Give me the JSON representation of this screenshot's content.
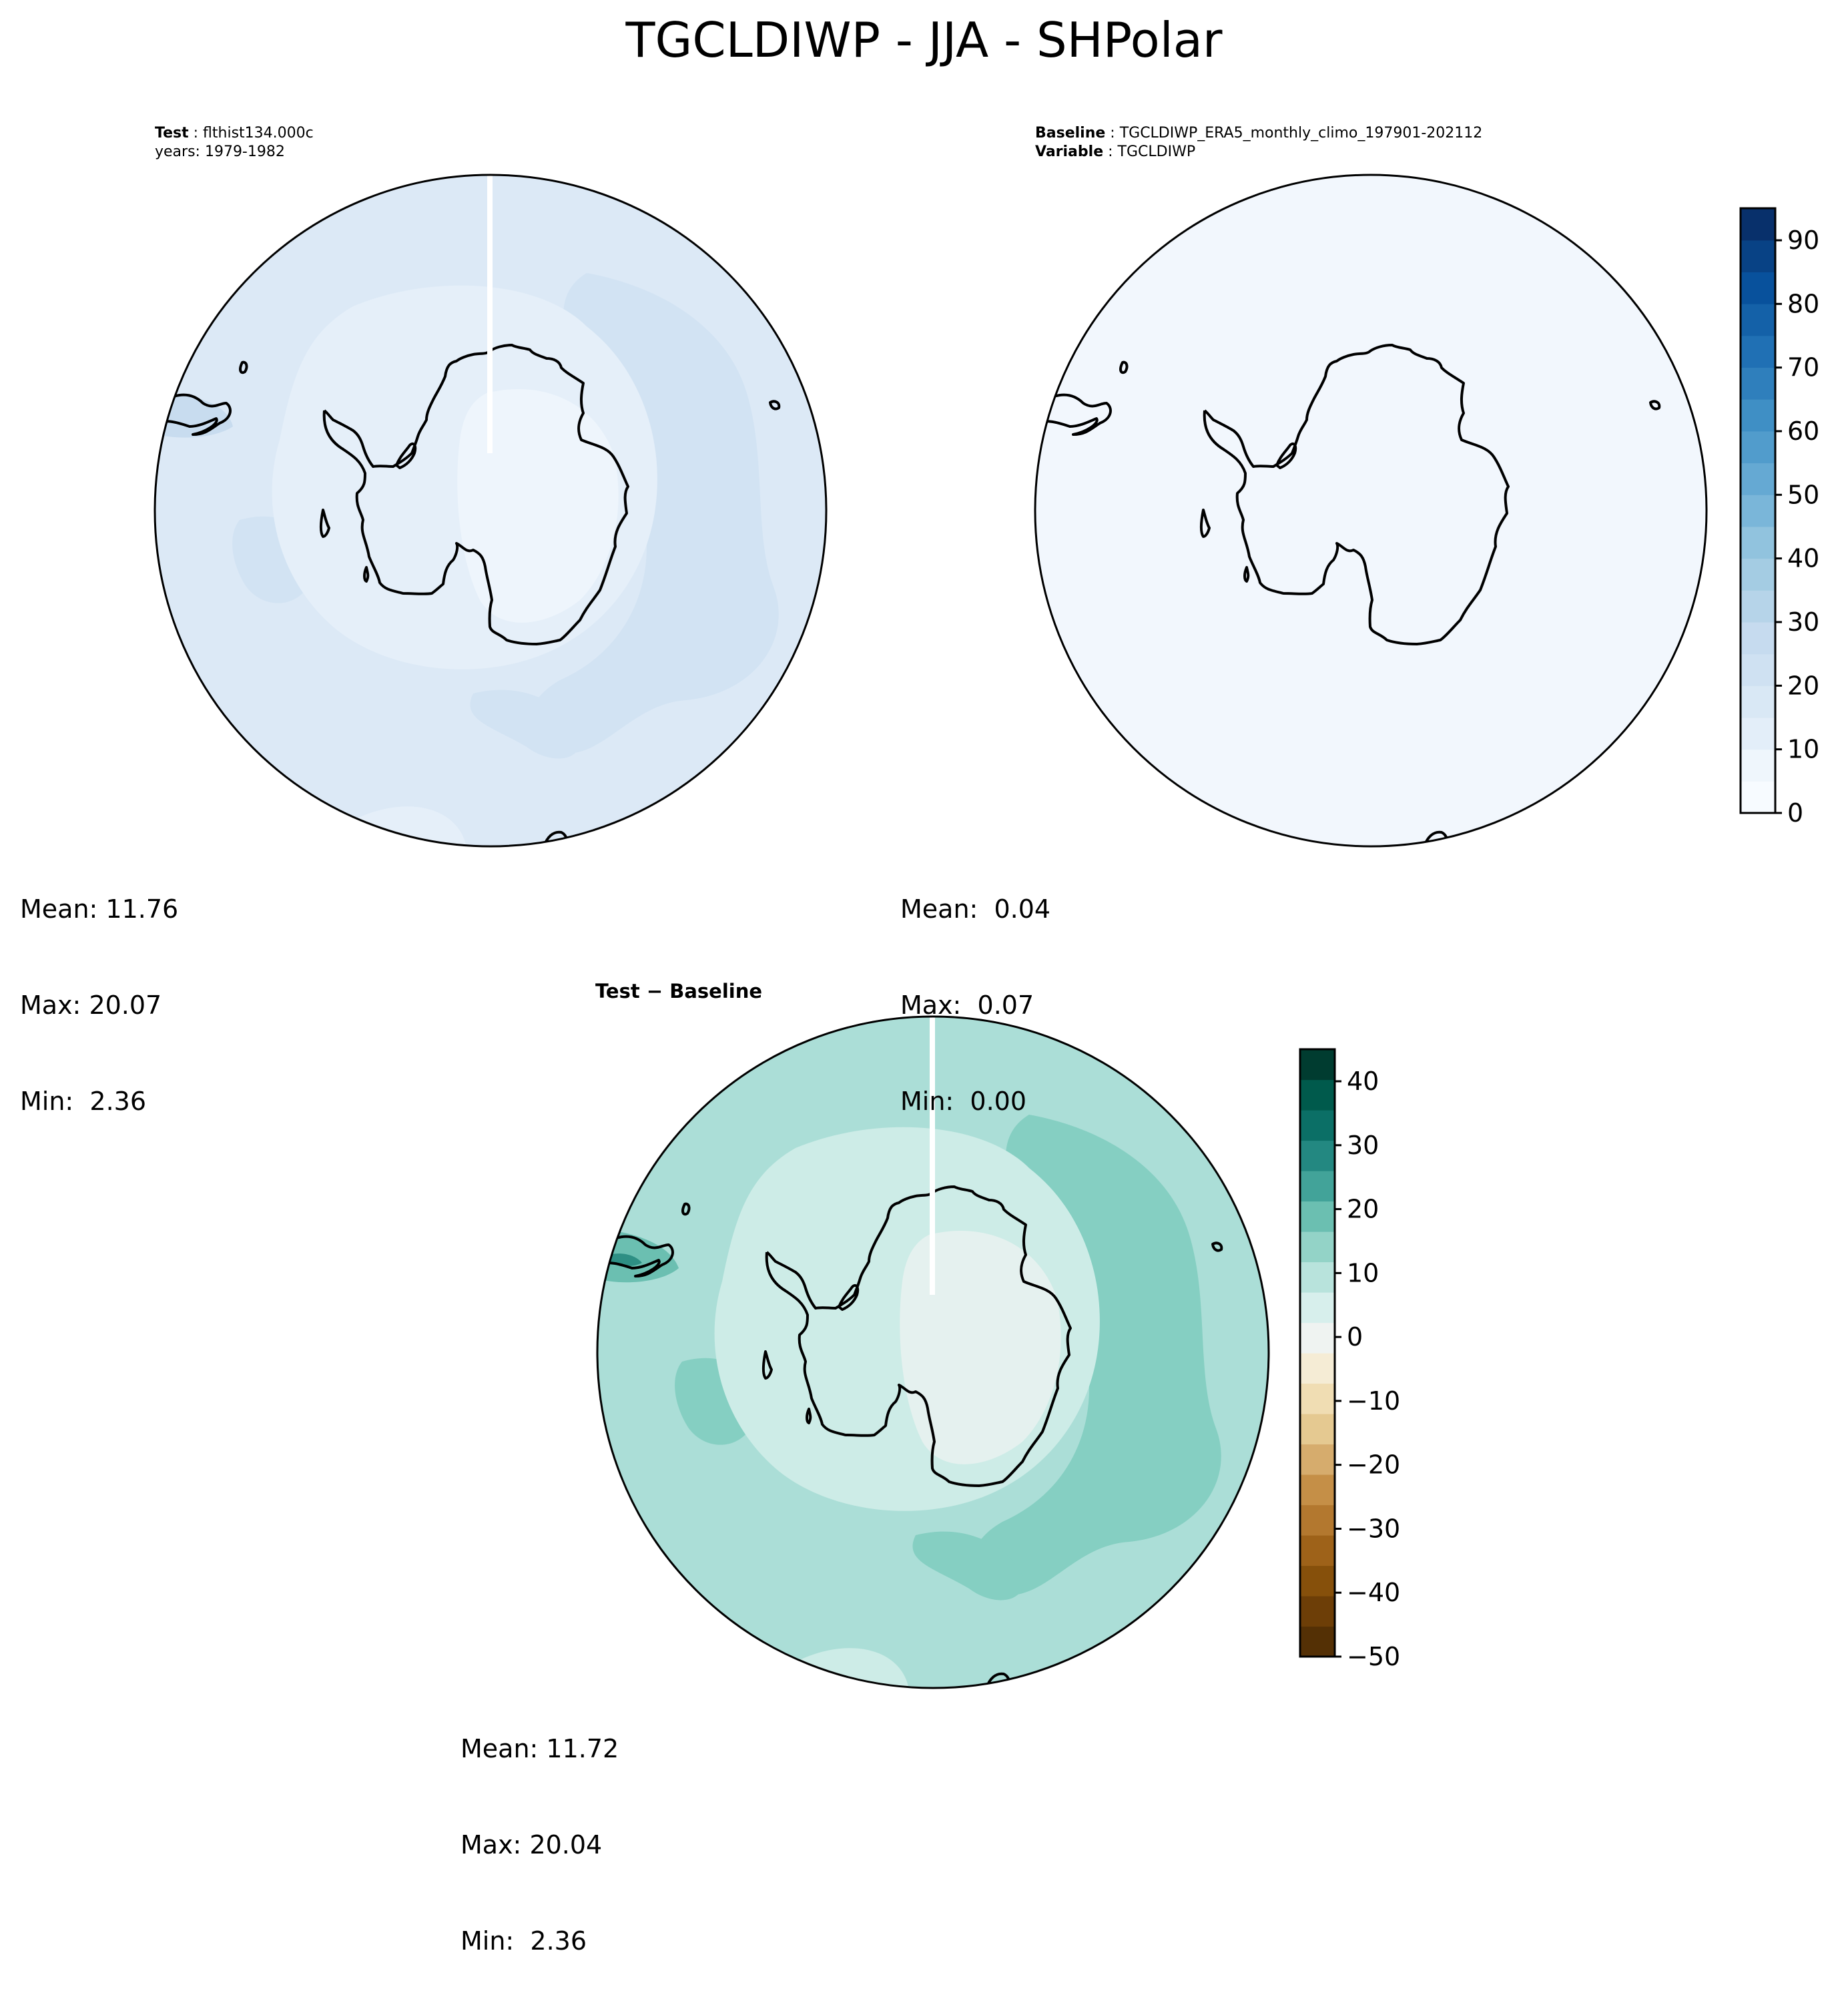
{
  "figure": {
    "title": "TGCLDIWP - JJA - SHPolar"
  },
  "panels": {
    "test": {
      "header": {
        "line1_key": "Test",
        "line1_sep": " : ",
        "line1_val": "flthist134.000c",
        "line2": "years: 1979-1982"
      },
      "stats": {
        "mean": "Mean: 11.76",
        "max": "Max: 20.07",
        "min": "Min:  2.36"
      }
    },
    "baseline": {
      "header": {
        "line1_key": "Baseline",
        "line1_sep": " : ",
        "line1_val": "TGCLDIWP_ERA5_monthly_climo_197901-202112",
        "line2_key": "Variable",
        "line2_sep": " : ",
        "line2_val": "TGCLDIWP"
      },
      "stats": {
        "mean": "Mean:  0.04",
        "max": "Max:  0.07",
        "min": "Min:  0.00"
      }
    },
    "diff": {
      "title": "Test − Baseline",
      "stats": {
        "mean": "Mean: 11.72",
        "max": "Max: 20.04",
        "min": "Min:  2.36"
      }
    }
  },
  "chart_data": [
    {
      "type": "heatmap",
      "projection": "south-polar-stereographic",
      "panel": "test",
      "colormap": "Blues",
      "fill_colors": {
        "outer_ocean": "#dce9f6",
        "inner_ring": "#e5eff9",
        "plateau": "#eef5fc",
        "streaks": "#d2e3f3"
      },
      "value_range": [
        2.36,
        20.07
      ]
    },
    {
      "type": "heatmap",
      "projection": "south-polar-stereographic",
      "panel": "baseline",
      "colormap": "Blues",
      "fill_colors": {
        "uniform": "#f2f7fd"
      },
      "value_range": [
        0.0,
        0.07
      ]
    },
    {
      "type": "heatmap",
      "projection": "south-polar-stereographic",
      "panel": "diff",
      "colormap": "BrBG",
      "fill_colors": {
        "outer_ocean": "#abded7",
        "inner_ring": "#cdece7",
        "plateau": "#e5f1ef",
        "streaks": "#85cfc2",
        "deep": "#2e8f84"
      },
      "value_range": [
        2.36,
        20.04
      ]
    }
  ],
  "colorbars": {
    "blues": {
      "ticks": [
        "0",
        "10",
        "20",
        "30",
        "40",
        "50",
        "60",
        "70",
        "80",
        "90"
      ],
      "colors": [
        "#f7fbff",
        "#eff6fc",
        "#e3eef9",
        "#d9e8f5",
        "#cfe1f2",
        "#c6dbef",
        "#b6d4e9",
        "#a4cce3",
        "#91c3de",
        "#7ab6d9",
        "#65a9d3",
        "#519ccc",
        "#3f8fc5",
        "#2f7fbc",
        "#2070b4",
        "#1461a8",
        "#08519c",
        "#084285",
        "#08306b"
      ]
    },
    "diff": {
      "ticks": [
        "40",
        "30",
        "20",
        "10",
        "0",
        "−10",
        "−20",
        "−30",
        "−40",
        "−50"
      ],
      "colors": [
        "#543005",
        "#6d3e07",
        "#86500b",
        "#9e6219",
        "#b3782f",
        "#c58f47",
        "#d6ac6d",
        "#e5c991",
        "#f0ddb3",
        "#f5ecd5",
        "#eff3f1",
        "#d7efec",
        "#b8e3dc",
        "#93d3c7",
        "#6bbfb1",
        "#42a399",
        "#238881",
        "#0b6f66",
        "#005a4c",
        "#003c30"
      ]
    }
  }
}
